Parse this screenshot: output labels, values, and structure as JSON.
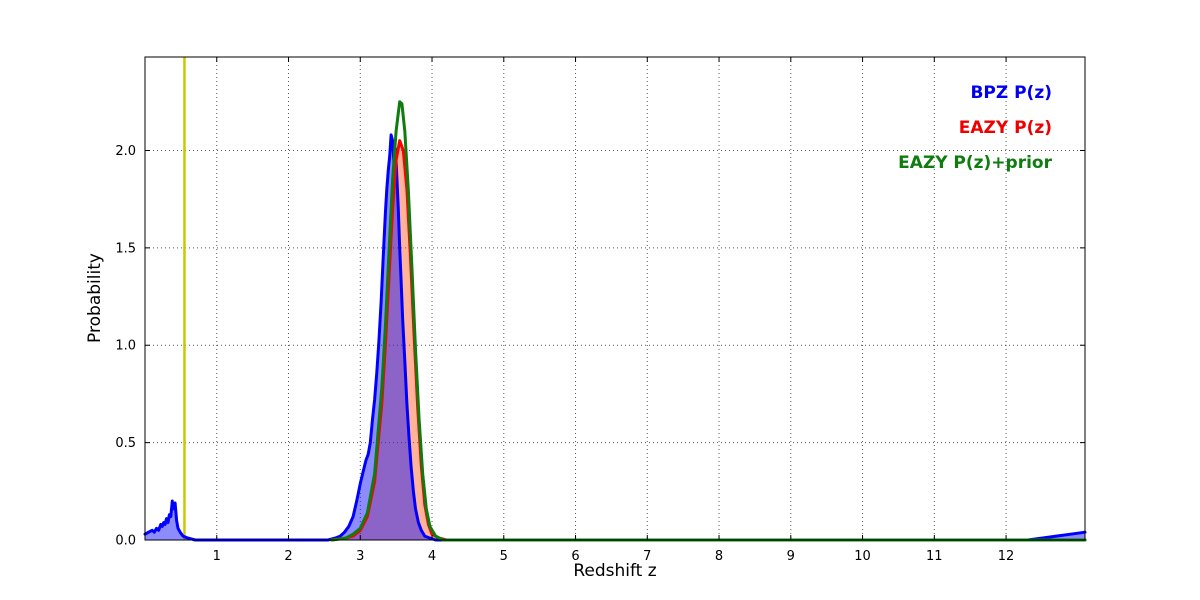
{
  "chart_data": {
    "type": "line",
    "title": "",
    "xlabel": "Redshift z",
    "ylabel": "Probability",
    "xlim": [
      0,
      13.1
    ],
    "ylim": [
      0,
      2.48
    ],
    "grid": true,
    "legend_position": "upper right",
    "xticks": [
      1,
      2,
      3,
      4,
      5,
      6,
      7,
      8,
      9,
      10,
      11,
      12
    ],
    "xtick_labels": [
      "1",
      "2",
      "3",
      "4",
      "5",
      "6",
      "7",
      "8",
      "9",
      "10",
      "11",
      "12"
    ],
    "yticks": [
      0,
      0.5,
      1.0,
      1.5,
      2.0
    ],
    "ytick_labels": [
      "0.0",
      "0.5",
      "1.0",
      "1.5",
      "2.0"
    ],
    "vline": {
      "x": 0.55,
      "color": "#c9c900"
    },
    "legend": [
      {
        "label": "BPZ P(z)",
        "color": "#0000ee"
      },
      {
        "label": "EAZY P(z)",
        "color": "#ee0000"
      },
      {
        "label": "EAZY P(z)+prior",
        "color": "#0e7c0e"
      }
    ],
    "series": [
      {
        "id": "bpz",
        "name": "BPZ P(z)",
        "color": "#0000ff",
        "width": 3,
        "fill": "#0000ff",
        "fill_opacity": 0.45,
        "points": [
          [
            0.0,
            0.03
          ],
          [
            0.05,
            0.04
          ],
          [
            0.1,
            0.05
          ],
          [
            0.13,
            0.04
          ],
          [
            0.16,
            0.06
          ],
          [
            0.19,
            0.05
          ],
          [
            0.22,
            0.08
          ],
          [
            0.24,
            0.07
          ],
          [
            0.26,
            0.09
          ],
          [
            0.28,
            0.08
          ],
          [
            0.3,
            0.11
          ],
          [
            0.32,
            0.09
          ],
          [
            0.34,
            0.13
          ],
          [
            0.36,
            0.12
          ],
          [
            0.38,
            0.2
          ],
          [
            0.4,
            0.16
          ],
          [
            0.42,
            0.19
          ],
          [
            0.44,
            0.1
          ],
          [
            0.46,
            0.06
          ],
          [
            0.49,
            0.04
          ],
          [
            0.53,
            0.02
          ],
          [
            0.6,
            0.01
          ],
          [
            0.7,
            0.0
          ],
          [
            1.5,
            0.0
          ],
          [
            2.55,
            0.0
          ],
          [
            2.65,
            0.01
          ],
          [
            2.72,
            0.02
          ],
          [
            2.78,
            0.04
          ],
          [
            2.84,
            0.07
          ],
          [
            2.9,
            0.12
          ],
          [
            2.95,
            0.2
          ],
          [
            3.0,
            0.29
          ],
          [
            3.04,
            0.35
          ],
          [
            3.08,
            0.41
          ],
          [
            3.11,
            0.44
          ],
          [
            3.14,
            0.5
          ],
          [
            3.17,
            0.62
          ],
          [
            3.2,
            0.72
          ],
          [
            3.23,
            0.86
          ],
          [
            3.26,
            1.02
          ],
          [
            3.29,
            1.22
          ],
          [
            3.32,
            1.45
          ],
          [
            3.35,
            1.68
          ],
          [
            3.37,
            1.8
          ],
          [
            3.39,
            1.9
          ],
          [
            3.41,
            1.97
          ],
          [
            3.43,
            2.08
          ],
          [
            3.45,
            2.05
          ],
          [
            3.47,
            1.93
          ],
          [
            3.49,
            2.01
          ],
          [
            3.51,
            1.86
          ],
          [
            3.53,
            1.7
          ],
          [
            3.55,
            1.5
          ],
          [
            3.57,
            1.32
          ],
          [
            3.59,
            1.14
          ],
          [
            3.62,
            0.92
          ],
          [
            3.65,
            0.7
          ],
          [
            3.68,
            0.52
          ],
          [
            3.71,
            0.37
          ],
          [
            3.74,
            0.25
          ],
          [
            3.77,
            0.16
          ],
          [
            3.81,
            0.09
          ],
          [
            3.85,
            0.05
          ],
          [
            3.9,
            0.02
          ],
          [
            3.97,
            0.01
          ],
          [
            4.05,
            0.0
          ],
          [
            12.3,
            0.0
          ],
          [
            12.5,
            0.01
          ],
          [
            12.7,
            0.02
          ],
          [
            12.9,
            0.03
          ],
          [
            13.1,
            0.04
          ]
        ]
      },
      {
        "id": "eazy",
        "name": "EAZY P(z)",
        "color": "#ff0000",
        "width": 3,
        "fill": "#ff4400",
        "fill_opacity": 0.4,
        "points": [
          [
            2.6,
            0.0
          ],
          [
            2.8,
            0.01
          ],
          [
            2.9,
            0.02
          ],
          [
            3.0,
            0.05
          ],
          [
            3.1,
            0.12
          ],
          [
            3.2,
            0.3
          ],
          [
            3.3,
            0.7
          ],
          [
            3.35,
            1.0
          ],
          [
            3.4,
            1.35
          ],
          [
            3.45,
            1.7
          ],
          [
            3.5,
            1.95
          ],
          [
            3.55,
            2.05
          ],
          [
            3.6,
            2.0
          ],
          [
            3.65,
            1.8
          ],
          [
            3.7,
            1.45
          ],
          [
            3.75,
            1.05
          ],
          [
            3.8,
            0.68
          ],
          [
            3.85,
            0.38
          ],
          [
            3.9,
            0.18
          ],
          [
            3.95,
            0.08
          ],
          [
            4.0,
            0.03
          ],
          [
            4.1,
            0.01
          ],
          [
            4.2,
            0.0
          ],
          [
            13.1,
            0.0
          ]
        ]
      },
      {
        "id": "eazy_prior",
        "name": "EAZY P(z)+prior",
        "color": "#0e7c0e",
        "width": 3,
        "fill": null,
        "fill_opacity": 0,
        "points": [
          [
            2.6,
            0.0
          ],
          [
            2.8,
            0.01
          ],
          [
            2.9,
            0.03
          ],
          [
            3.0,
            0.06
          ],
          [
            3.1,
            0.14
          ],
          [
            3.2,
            0.34
          ],
          [
            3.3,
            0.78
          ],
          [
            3.35,
            1.1
          ],
          [
            3.4,
            1.48
          ],
          [
            3.45,
            1.85
          ],
          [
            3.5,
            2.1
          ],
          [
            3.55,
            2.25
          ],
          [
            3.58,
            2.24
          ],
          [
            3.62,
            2.1
          ],
          [
            3.67,
            1.8
          ],
          [
            3.72,
            1.4
          ],
          [
            3.77,
            0.98
          ],
          [
            3.82,
            0.62
          ],
          [
            3.87,
            0.34
          ],
          [
            3.92,
            0.16
          ],
          [
            3.97,
            0.07
          ],
          [
            4.05,
            0.02
          ],
          [
            4.15,
            0.0
          ],
          [
            13.1,
            0.0
          ]
        ]
      }
    ]
  }
}
